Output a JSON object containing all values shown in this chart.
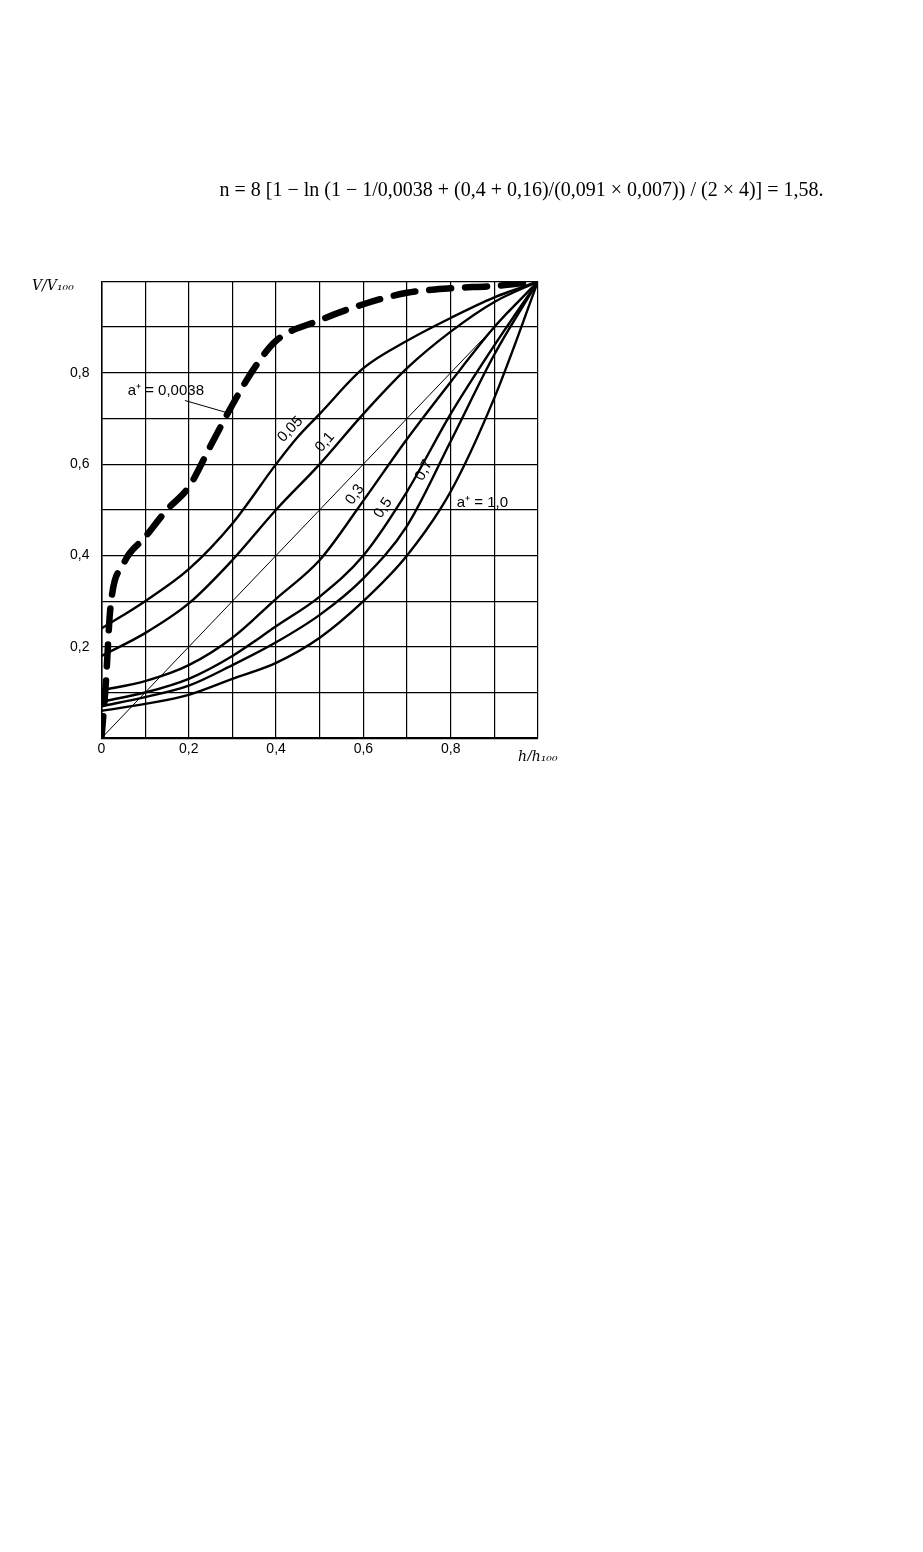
{
  "chart_data": {
    "type": "line",
    "annotations": [
      "n = 8 [1 − ln (1 − 1/0,0038 + (0,4 + 0,16)/(0,091 × 0,007)) / (2 × 4)] = 1,58."
    ],
    "xlabel": "h/h₁₀₀",
    "ylabel": "V/V₁₀₀",
    "xlim": [
      0,
      1
    ],
    "ylim": [
      0,
      1
    ],
    "xticks": [
      {
        "value": 0,
        "label": "0"
      },
      {
        "value": 0.1,
        "label": null
      },
      {
        "value": 0.2,
        "label": "0,2"
      },
      {
        "value": 0.3,
        "label": null
      },
      {
        "value": 0.4,
        "label": "0,4"
      },
      {
        "value": 0.5,
        "label": null
      },
      {
        "value": 0.6,
        "label": "0,6"
      },
      {
        "value": 0.7,
        "label": null
      },
      {
        "value": 0.8,
        "label": "0,8"
      },
      {
        "value": 0.9,
        "label": null
      },
      {
        "value": 1,
        "label": null
      }
    ],
    "yticks": [
      {
        "value": 0,
        "label": null
      },
      {
        "value": 0.1,
        "label": null
      },
      {
        "value": 0.2,
        "label": "0,2"
      },
      {
        "value": 0.3,
        "label": null
      },
      {
        "value": 0.4,
        "label": "0,4"
      },
      {
        "value": 0.5,
        "label": null
      },
      {
        "value": 0.6,
        "label": "0,6"
      },
      {
        "value": 0.7,
        "label": null
      },
      {
        "value": 0.8,
        "label": "0,8"
      },
      {
        "value": 0.9,
        "label": null
      },
      {
        "value": 1,
        "label": null
      }
    ],
    "grid": true,
    "legend": false,
    "marker": "none",
    "series": [
      {
        "name": "a⁺ = 0,0038",
        "color": "#000000",
        "line_style": "dashed",
        "x": [
          0,
          0.01,
          0.02,
          0.05,
          0.1,
          0.15,
          0.2,
          0.25,
          0.3,
          0.35,
          0.4,
          0.5,
          0.6,
          0.7,
          0.8,
          0.9,
          1
        ],
        "values": [
          0,
          0.12,
          0.28,
          0.38,
          0.44,
          0.5,
          0.55,
          0.64,
          0.73,
          0.81,
          0.87,
          0.915,
          0.95,
          0.975,
          0.985,
          0.99,
          1
        ]
      },
      {
        "name": "0,05",
        "color": "#000000",
        "x": [
          0,
          0.1,
          0.2,
          0.3,
          0.4,
          0.45,
          0.5,
          0.6,
          0.7,
          0.8,
          0.9,
          1
        ],
        "values": [
          0.24,
          0.3,
          0.37,
          0.47,
          0.6,
          0.66,
          0.71,
          0.81,
          0.87,
          0.92,
          0.965,
          1
        ]
      },
      {
        "name": "0,1",
        "color": "#000000",
        "x": [
          0,
          0.1,
          0.2,
          0.3,
          0.4,
          0.5,
          0.6,
          0.7,
          0.8,
          0.9,
          1
        ],
        "values": [
          0.18,
          0.23,
          0.295,
          0.39,
          0.5,
          0.6,
          0.71,
          0.81,
          0.89,
          0.955,
          1
        ]
      },
      {
        "color": "#000000",
        "x": [
          0,
          1
        ],
        "values": [
          0,
          1
        ]
      },
      {
        "name": "0,3",
        "color": "#000000",
        "x": [
          0,
          0.1,
          0.2,
          0.3,
          0.4,
          0.5,
          0.6,
          0.7,
          0.8,
          0.9,
          1
        ],
        "values": [
          0.105,
          0.125,
          0.16,
          0.22,
          0.305,
          0.39,
          0.52,
          0.655,
          0.78,
          0.9,
          1
        ]
      },
      {
        "name": "0,5",
        "color": "#000000",
        "x": [
          0,
          0.1,
          0.2,
          0.3,
          0.4,
          0.5,
          0.6,
          0.7,
          0.8,
          0.9,
          1
        ],
        "values": [
          0.08,
          0.1,
          0.13,
          0.18,
          0.245,
          0.31,
          0.4,
          0.54,
          0.71,
          0.86,
          1
        ]
      },
      {
        "name": "0,7",
        "color": "#000000",
        "x": [
          0,
          0.1,
          0.2,
          0.3,
          0.4,
          0.5,
          0.6,
          0.7,
          0.8,
          0.9,
          1
        ],
        "values": [
          0.07,
          0.09,
          0.115,
          0.16,
          0.21,
          0.27,
          0.35,
          0.465,
          0.65,
          0.84,
          1
        ]
      },
      {
        "name": "a⁺ = 1,0",
        "color": "#000000",
        "x": [
          0,
          0.1,
          0.2,
          0.3,
          0.4,
          0.5,
          0.6,
          0.7,
          0.8,
          0.9,
          1
        ],
        "values": [
          0.06,
          0.075,
          0.095,
          0.13,
          0.165,
          0.22,
          0.3,
          0.4,
          0.54,
          0.745,
          1
        ]
      }
    ]
  }
}
